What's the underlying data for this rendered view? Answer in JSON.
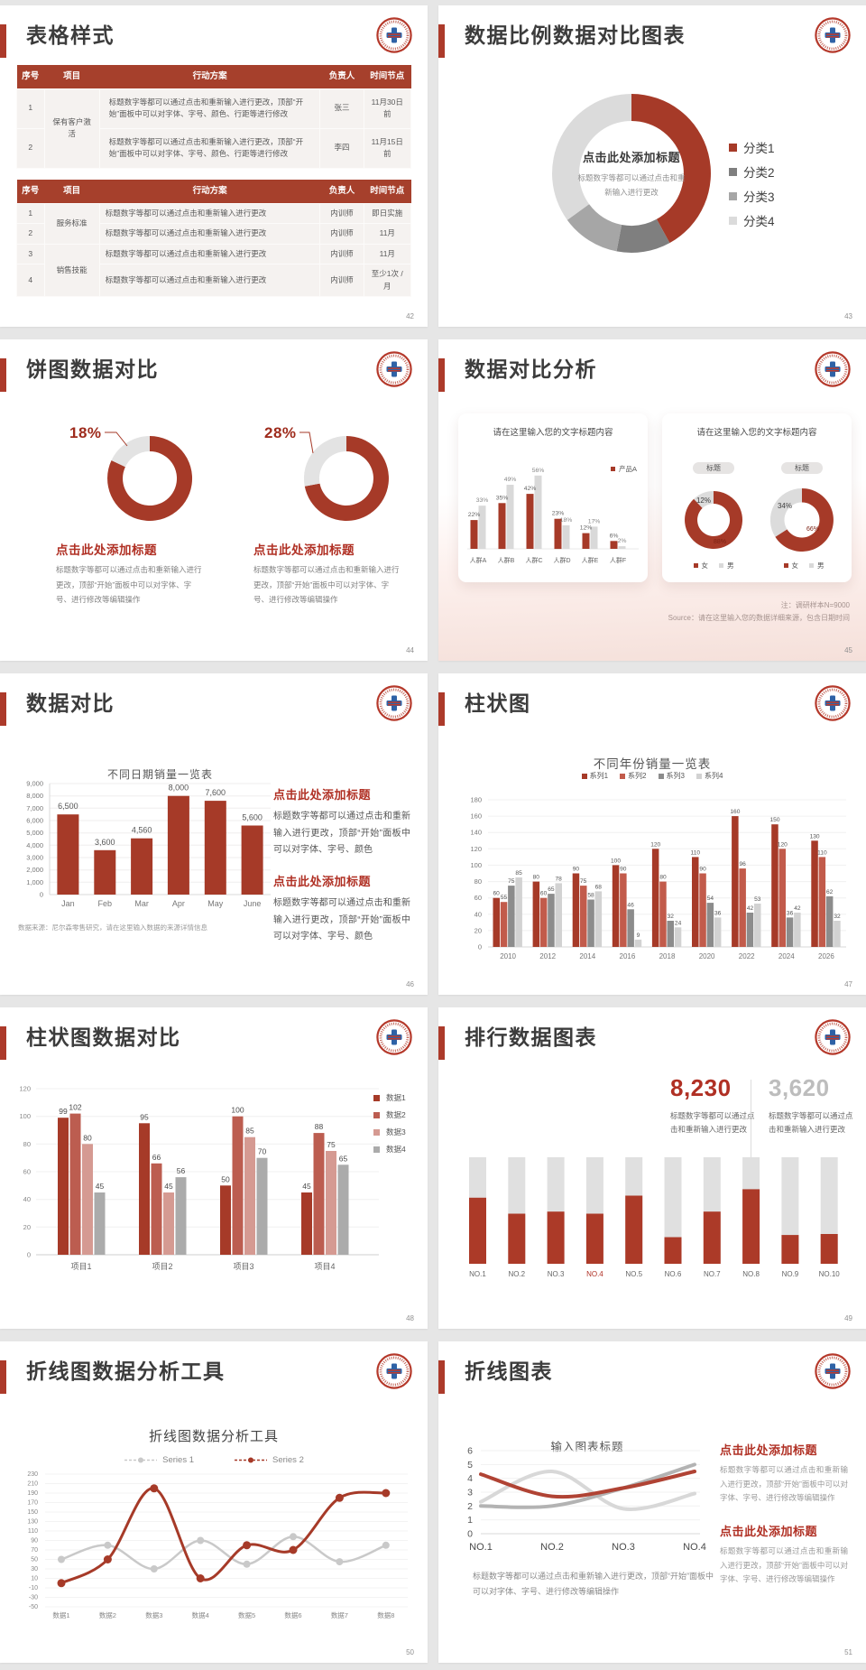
{
  "colors": {
    "primary_red": "#A63A28",
    "red_medium": "#BC5D50",
    "red_light": "#D59A92",
    "gray_dark": "#7F7F7F",
    "gray_mid": "#A6A6A6",
    "gray_light": "#DBDBDB",
    "table_header_bg": "#A6402C",
    "heading_red": "#B03024",
    "stat_gray": "#BDBDBD"
  },
  "slides": [
    {
      "title": "表格样式",
      "page": "42",
      "tables": [
        {
          "headers": [
            "序号",
            "项目",
            "行动方案",
            "负责人",
            "时间节点"
          ],
          "rows": [
            [
              {
                "t": "1"
              },
              {
                "t": "保有客户激活",
                "rs": 2,
                "c": "proj"
              },
              {
                "t": "标题数字等都可以通过点击和重新输入进行更改，顶部“开始”面板中可以对字体、字号、颜色、行距等进行修改",
                "c": "plan"
              },
              {
                "t": "张三"
              },
              {
                "t": "11月30日前"
              }
            ],
            [
              {
                "t": "2"
              },
              {
                "t": "标题数字等都可以通过点击和重新输入进行更改，顶部“开始”面板中可以对字体、字号、颜色、行距等进行修改",
                "c": "plan"
              },
              {
                "t": "李四"
              },
              {
                "t": "11月15日前"
              }
            ]
          ]
        },
        {
          "headers": [
            "序号",
            "项目",
            "行动方案",
            "负责人",
            "时间节点"
          ],
          "rows": [
            [
              {
                "t": "1"
              },
              {
                "t": "服务标准",
                "rs": 2,
                "c": "proj"
              },
              {
                "t": "标题数字等都可以通过点击和重新输入进行更改",
                "c": "plan"
              },
              {
                "t": "内训师"
              },
              {
                "t": "即日实施"
              }
            ],
            [
              {
                "t": "2"
              },
              {
                "t": "标题数字等都可以通过点击和重新输入进行更改",
                "c": "plan"
              },
              {
                "t": "内训师"
              },
              {
                "t": "11月"
              }
            ],
            [
              {
                "t": "3"
              },
              {
                "t": "销售技能",
                "rs": 2,
                "c": "proj"
              },
              {
                "t": "标题数字等都可以通过点击和重新输入进行更改",
                "c": "plan"
              },
              {
                "t": "内训师"
              },
              {
                "t": "11月"
              }
            ],
            [
              {
                "t": "4"
              },
              {
                "t": "标题数字等都可以通过点击和重新输入进行更改",
                "c": "plan"
              },
              {
                "t": "内训师"
              },
              {
                "t": "至少1次 /月"
              }
            ]
          ]
        }
      ]
    },
    {
      "title": "数据比例数据对比图表",
      "page": "43",
      "center_title": "点击此处添加标题",
      "center_sub": "标题数字等都可以通过点击和重新输入进行更改",
      "chart_data": {
        "type": "pie",
        "donut": true,
        "labels": [
          "分类1",
          "分类2",
          "分类3",
          "分类4"
        ],
        "values": [
          42,
          11,
          12,
          35
        ],
        "colors": [
          "#A63A28",
          "#7F7F7F",
          "#A6A6A6",
          "#DBDBDB"
        ],
        "legend_position": "right"
      }
    },
    {
      "title": "饼图数据对比",
      "page": "44",
      "items": [
        {
          "pct": "18%",
          "heading": "点击此处添加标题",
          "para": "标题数字等都可以通过点击和重新输入进行更改，顶部“开始”面板中可以对字体、字号、进行修改等编辑操作"
        },
        {
          "pct": "28%",
          "heading": "点击此处添加标题",
          "para": "标题数字等都可以通过点击和重新输入进行更改，顶部“开始”面板中可以对字体、字号、进行修改等编辑操作"
        }
      ],
      "chart_data": [
        {
          "type": "pie",
          "donut": true,
          "values": [
            82,
            18
          ],
          "colors": [
            "#A63A28",
            "#E3E3E3"
          ]
        },
        {
          "type": "pie",
          "donut": true,
          "values": [
            72,
            28
          ],
          "colors": [
            "#A63A28",
            "#E3E3E3"
          ]
        }
      ]
    },
    {
      "title": "数据对比分析",
      "page": "45",
      "card1": {
        "title": "请在这里输入您的文字标题内容",
        "legend": "产品A",
        "chart_data": {
          "type": "bar",
          "categories": [
            "人群A",
            "人群B",
            "人群C",
            "人群D",
            "人群E",
            "人群F"
          ],
          "series": [
            {
              "name": "产品A",
              "color": "#A63A28",
              "values": [
                22,
                35,
                42,
                23,
                12,
                6
              ]
            },
            {
              "name": "",
              "color": "#D9D9D9",
              "values": [
                33,
                49,
                56,
                18,
                17,
                2
              ]
            }
          ],
          "value_labels": [
            [
              "22%",
              "35%",
              "42%",
              "23%",
              "12%",
              "6%"
            ],
            [
              "33%",
              "49%",
              "56%",
              "18%",
              "17%",
              "2%"
            ]
          ]
        }
      },
      "card2": {
        "title": "请在这里输入您的文字标题内容",
        "pill": "标题",
        "legend_female": "女",
        "legend_male": "男",
        "donut1": {
          "type": "pie",
          "donut": true,
          "values": [
            88,
            12
          ],
          "labels": [
            "88%",
            "12%"
          ],
          "colors": [
            "#A63A28",
            "#DCDCDC"
          ]
        },
        "donut2": {
          "type": "pie",
          "donut": true,
          "values": [
            66,
            34
          ],
          "labels": [
            "66%",
            "34%"
          ],
          "colors": [
            "#A63A28",
            "#DCDCDC"
          ]
        }
      },
      "note1": "注：调研样本N=9000",
      "note2": "Source：请在这里输入您的数据详细来源，包含日期时间"
    },
    {
      "title": "数据对比",
      "page": "46",
      "chart_title": "不同日期销量一览表",
      "chart_data": {
        "type": "bar",
        "categories": [
          "Jan",
          "Feb",
          "Mar",
          "Apr",
          "May",
          "June"
        ],
        "values": [
          6500,
          3600,
          4560,
          8000,
          7600,
          5600
        ],
        "value_labels": [
          "6,500",
          "3,600",
          "4,560",
          "8,000",
          "7,600",
          "5,600"
        ],
        "y_ticks": [
          "9,000",
          "8,000",
          "7,000",
          "6,000",
          "5,000",
          "4,000",
          "3,000",
          "2,000",
          "1,000",
          "0"
        ],
        "ylim": [
          0,
          9000
        ],
        "bar_color": "#A63A28"
      },
      "note": "数据来源：尼尔森零售研究，请在这里输入数据的来源详情信息",
      "blocks": [
        {
          "heading": "点击此处添加标题",
          "para": "标题数字等都可以通过点击和重新输入进行更改，顶部“开始”面板中可以对字体、字号、颜色"
        },
        {
          "heading": "点击此处添加标题",
          "para": "标题数字等都可以通过点击和重新输入进行更改，顶部“开始”面板中可以对字体、字号、颜色"
        }
      ]
    },
    {
      "title": "柱状图",
      "page": "47",
      "chart_title": "不同年份销量一览表",
      "chart_data": {
        "type": "bar",
        "categories": [
          "2010",
          "2012",
          "2014",
          "2016",
          "2018",
          "2020",
          "2022",
          "2024",
          "2026"
        ],
        "series": [
          {
            "name": "系列1",
            "color": "#A63A28",
            "values": [
              60,
              80,
              90,
              100,
              120,
              110,
              160,
              150,
              130
            ]
          },
          {
            "name": "系列2",
            "color": "#C25B4B",
            "values": [
              55,
              60,
              75,
              90,
              80,
              90,
              96,
              120,
              110
            ]
          },
          {
            "name": "系列3",
            "color": "#8C8C8C",
            "values": [
              75,
              65,
              58,
              46,
              32,
              54,
              42,
              36,
              62
            ]
          },
          {
            "name": "系列4",
            "color": "#D2D2D2",
            "values": [
              85,
              78,
              68,
              9,
              24,
              36,
              53,
              42,
              32
            ]
          }
        ],
        "y_ticks": [
          0,
          20,
          40,
          60,
          80,
          100,
          120,
          140,
          160,
          180
        ],
        "ylim": [
          0,
          180
        ]
      }
    },
    {
      "title": "柱状图数据对比",
      "page": "48",
      "chart_data": {
        "type": "bar",
        "categories": [
          "项目1",
          "项目2",
          "项目3",
          "项目4"
        ],
        "series": [
          {
            "name": "数据1",
            "color": "#A63A28",
            "values": [
              99,
              95,
              50,
              45
            ]
          },
          {
            "name": "数据2",
            "color": "#BC5D50",
            "values": [
              102,
              66,
              100,
              88
            ]
          },
          {
            "name": "数据3",
            "color": "#D59A92",
            "values": [
              80,
              45,
              85,
              75
            ]
          },
          {
            "name": "数据4",
            "color": "#ABABAB",
            "values": [
              45,
              56,
              70,
              65
            ]
          }
        ],
        "y_ticks": [
          0,
          20,
          40,
          60,
          80,
          100,
          120
        ],
        "ylim": [
          0,
          120
        ]
      }
    },
    {
      "title": "排行数据图表",
      "page": "49",
      "stat1": {
        "value": "8,230",
        "para": "标题数字等都可以通过点击和重新输入进行更改"
      },
      "stat2": {
        "value": "3,620",
        "para": "标题数字等都可以通过点击和重新输入进行更改"
      },
      "chart_data": {
        "type": "bar",
        "stacked": true,
        "categories": [
          "NO.1",
          "NO.2",
          "NO.3",
          "NO.4",
          "NO.5",
          "NO.6",
          "NO.7",
          "NO.8",
          "NO.9",
          "NO.10"
        ],
        "red_fraction": [
          0.62,
          0.47,
          0.49,
          0.47,
          0.64,
          0.25,
          0.49,
          0.7,
          0.27,
          0.28
        ],
        "highlight_index": 3,
        "colors": [
          "#AC3A28",
          "#E0E0E0"
        ]
      }
    },
    {
      "title": "折线图数据分析工具",
      "page": "50",
      "chart_title": "折线图数据分析工具",
      "chart_data": {
        "type": "line",
        "categories": [
          "数据1",
          "数据2",
          "数据3",
          "数据4",
          "数据5",
          "数据6",
          "数据7",
          "数据8"
        ],
        "series": [
          {
            "name": "Series 1",
            "color": "#C9C9C9",
            "values": [
              50,
              80,
              30,
              90,
              40,
              98,
              45,
              80
            ]
          },
          {
            "name": "Series 2",
            "color": "#A63A28",
            "values": [
              0,
              50,
              200,
              10,
              80,
              70,
              180,
              190
            ]
          }
        ],
        "y_ticks": [
          -50,
          -30,
          -10,
          10,
          30,
          50,
          70,
          90,
          110,
          130,
          150,
          170,
          190,
          210,
          230
        ],
        "ylim": [
          -50,
          230
        ]
      }
    },
    {
      "title": "折线图表",
      "page": "51",
      "chart_title": "输入图表标题",
      "para": "标题数字等都可以通过点击和重新输入进行更改，顶部“开始”面板中可以对字体、字号、进行修改等编辑操作",
      "blocks": [
        {
          "heading": "点击此处添加标题",
          "para": "标题数字等都可以通过点击和重新输入进行更改，顶部“开始”面板中可以对字体、字号、进行修改等编辑操作"
        },
        {
          "heading": "点击此处添加标题",
          "para": "标题数字等都可以通过点击和重新输入进行更改，顶部“开始”面板中可以对字体、字号、进行修改等编辑操作"
        }
      ],
      "chart_data": {
        "type": "line",
        "categories": [
          "NO.1",
          "NO.2",
          "NO.3",
          "NO.4"
        ],
        "series": [
          {
            "color": "#D8D8D8",
            "values": [
              2.3,
              4.5,
              1.8,
              2.9
            ]
          },
          {
            "color": "#B3B3B3",
            "values": [
              2,
              2,
              3.3,
              5
            ]
          },
          {
            "color": "#B04334",
            "values": [
              4.3,
              2.7,
              3.3,
              4.5
            ]
          }
        ],
        "y_ticks": [
          0,
          1,
          2,
          3,
          4,
          5,
          6
        ],
        "ylim": [
          0,
          6
        ]
      }
    }
  ]
}
